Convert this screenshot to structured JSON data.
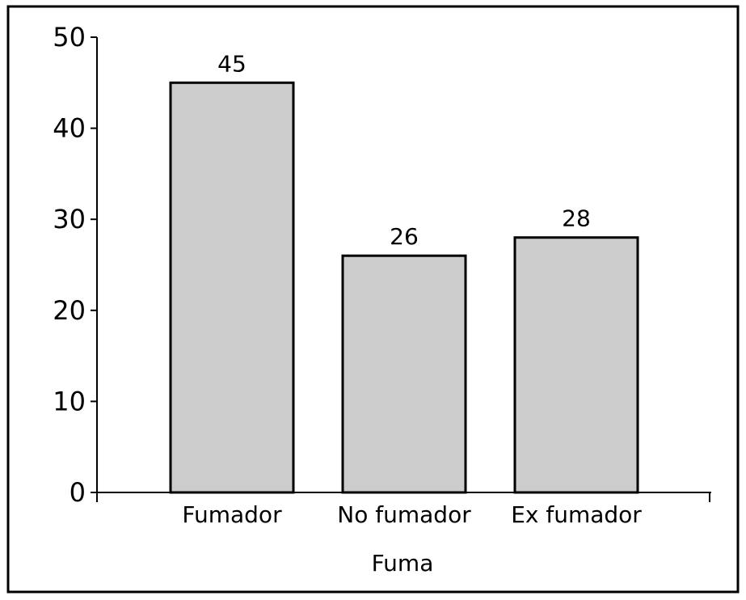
{
  "chart_data": {
    "type": "bar",
    "title": "",
    "xlabel": "Fuma",
    "ylabel": "",
    "categories": [
      "Fumador",
      "No fumador",
      "Ex fumador"
    ],
    "values": [
      45,
      26,
      28
    ],
    "data_labels": [
      "45",
      "26",
      "28"
    ],
    "ylim": [
      0,
      50
    ],
    "yticks": [
      0,
      10,
      20,
      30,
      40,
      50
    ],
    "ytick_labels": [
      "0",
      "10",
      "20",
      "30",
      "40",
      "50"
    ],
    "grid": false,
    "legend": "none",
    "bar_color": "#cccccc",
    "bar_edge_color": "#000000",
    "frame_color": "#000000"
  }
}
